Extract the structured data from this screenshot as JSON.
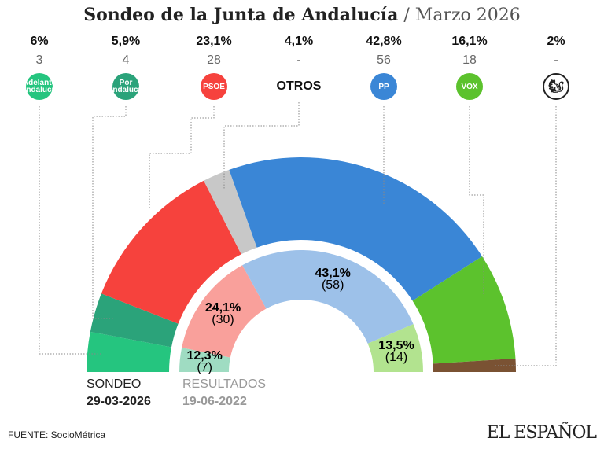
{
  "header": {
    "title": "Sondeo de la Junta de Andalucía",
    "subtitle": "/ Marzo 2026"
  },
  "chart_data": {
    "type": "pie",
    "variant": "nested semicircle (hemicycle)",
    "outer": {
      "label": "SONDEO",
      "date": "29-03-2026",
      "value_basis": "percent",
      "parties": [
        {
          "name": "Adelante Andalucía",
          "logo_text": "Adelante Andalucía",
          "percent": "6%",
          "value": 6,
          "seats": "3",
          "color": "#25c57f"
        },
        {
          "name": "Por Andalucía",
          "logo_text": "Por Andalucía",
          "percent": "5,9%",
          "value": 5.9,
          "seats": "4",
          "color": "#2ba37a"
        },
        {
          "name": "PSOE",
          "logo_text": "PSOE",
          "percent": "23,1%",
          "value": 23.1,
          "seats": "28",
          "color": "#f6423d"
        },
        {
          "name": "OTROS",
          "logo_text": "OTROS",
          "percent": "4,1%",
          "value": 4.1,
          "seats": "-",
          "color": "#c8c8c8"
        },
        {
          "name": "PP",
          "logo_text": "PP",
          "percent": "42,8%",
          "value": 42.8,
          "seats": "56",
          "color": "#3a86d6"
        },
        {
          "name": "VOX",
          "logo_text": "VOX",
          "percent": "16,1%",
          "value": 16.1,
          "seats": "18",
          "color": "#5cc22d"
        },
        {
          "name": "Ardilla",
          "logo_text": "",
          "percent": "2%",
          "value": 2,
          "seats": "-",
          "color": "#7a5233"
        }
      ]
    },
    "inner": {
      "label": "RESULTADOS",
      "date": "19-06-2022",
      "value_basis": "seats",
      "parties": [
        {
          "percent": "12,3%",
          "seats": "(7)",
          "value": 7,
          "color": "#9fdcc2"
        },
        {
          "percent": "24,1%",
          "seats": "(30)",
          "value": 30,
          "color": "#f9a09b"
        },
        {
          "percent": "43,1%",
          "seats": "(58)",
          "value": 58,
          "color": "#9dc1e9"
        },
        {
          "percent": "13,5%",
          "seats": "(14)",
          "value": 14,
          "color": "#b2e38f"
        }
      ]
    }
  },
  "footer": {
    "source": "FUENTE: SocioMétrica",
    "brand": "EL ESPAÑOL"
  }
}
